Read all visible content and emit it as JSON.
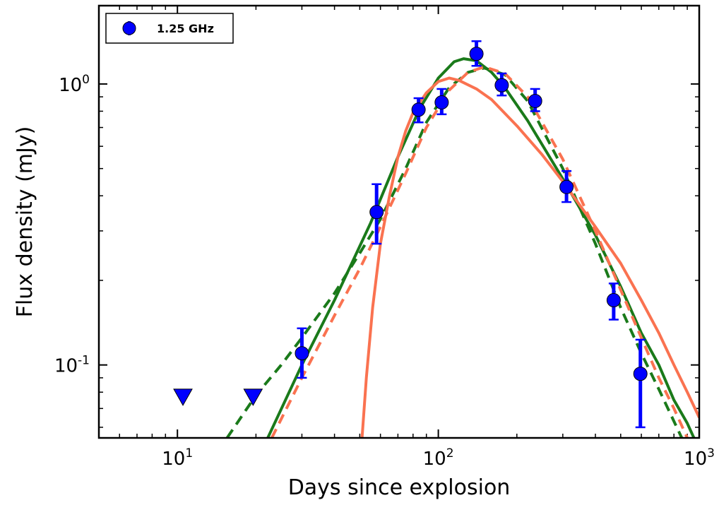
{
  "chart_data": {
    "type": "scatter",
    "title": "",
    "xlabel": "Days since explosion",
    "ylabel": "Flux density (mJy)",
    "xscale": "log",
    "yscale": "log",
    "xlim": [
      5,
      1000
    ],
    "ylim": [
      0.055,
      1.9
    ],
    "grid": false,
    "legend": {
      "placement": "top-left",
      "entries": [
        "1.25 GHz"
      ]
    },
    "x_tick_labels": [
      {
        "value": 10,
        "base": "10",
        "exp": "1"
      },
      {
        "value": 100,
        "base": "10",
        "exp": "2"
      },
      {
        "value": 1000,
        "base": "10",
        "exp": "3"
      }
    ],
    "y_tick_labels": [
      {
        "value": 0.1,
        "base": "10",
        "exp": "-1"
      },
      {
        "value": 1,
        "base": "10",
        "exp": "0"
      }
    ],
    "series": [
      {
        "name": "1.25 GHz",
        "kind": "errorbar",
        "color": "#0000ff",
        "points": [
          {
            "x": 30,
            "y": 0.11,
            "err_lo": 0.02,
            "err_hi": 0.025
          },
          {
            "x": 58,
            "y": 0.35,
            "err_lo": 0.08,
            "err_hi": 0.09
          },
          {
            "x": 84,
            "y": 0.81,
            "err_lo": 0.08,
            "err_hi": 0.08
          },
          {
            "x": 103,
            "y": 0.86,
            "err_lo": 0.08,
            "err_hi": 0.1
          },
          {
            "x": 140,
            "y": 1.28,
            "err_lo": 0.12,
            "err_hi": 0.14
          },
          {
            "x": 175,
            "y": 0.99,
            "err_lo": 0.08,
            "err_hi": 0.1
          },
          {
            "x": 235,
            "y": 0.87,
            "err_lo": 0.07,
            "err_hi": 0.09
          },
          {
            "x": 310,
            "y": 0.43,
            "err_lo": 0.05,
            "err_hi": 0.06
          },
          {
            "x": 470,
            "y": 0.17,
            "err_lo": 0.025,
            "err_hi": 0.025
          },
          {
            "x": 595,
            "y": 0.093,
            "err_lo": 0.033,
            "err_hi": 0.03
          }
        ]
      },
      {
        "kind": "upper_limit",
        "color": "#0000ff",
        "points": [
          {
            "x": 10.5,
            "y": 0.077
          },
          {
            "x": 19.5,
            "y": 0.077
          }
        ]
      },
      {
        "kind": "model",
        "style": "solid",
        "color": "#1a7a1a",
        "x": [
          22.2,
          30,
          40,
          55,
          70,
          85,
          100,
          115,
          125,
          140,
          160,
          180,
          220,
          300,
          400,
          500,
          600,
          700,
          800,
          900,
          1000
        ],
        "y": [
          0.055,
          0.1,
          0.17,
          0.32,
          0.55,
          0.82,
          1.05,
          1.2,
          1.23,
          1.21,
          1.1,
          0.97,
          0.74,
          0.46,
          0.29,
          0.19,
          0.13,
          0.1,
          0.075,
          0.062,
          0.05
        ]
      },
      {
        "kind": "model",
        "style": "dashed",
        "color": "#1a7a1a",
        "x": [
          15.5,
          20,
          25,
          30,
          40,
          50,
          60,
          75,
          90,
          110,
          130,
          150,
          180,
          220,
          300,
          400,
          500,
          600,
          700,
          800,
          900
        ],
        "y": [
          0.055,
          0.078,
          0.1,
          0.125,
          0.18,
          0.25,
          0.33,
          0.5,
          0.73,
          0.97,
          1.1,
          1.14,
          1.08,
          0.87,
          0.5,
          0.27,
          0.16,
          0.11,
          0.082,
          0.063,
          0.05
        ]
      },
      {
        "kind": "model",
        "style": "solid",
        "color": "#fa7250",
        "x": [
          51,
          53,
          56,
          60,
          65,
          70,
          75,
          80,
          90,
          100,
          110,
          120,
          140,
          160,
          200,
          250,
          300,
          400,
          500,
          600,
          700,
          800,
          900,
          1000
        ],
        "y": [
          0.055,
          0.09,
          0.16,
          0.27,
          0.4,
          0.55,
          0.68,
          0.79,
          0.93,
          1.02,
          1.05,
          1.03,
          0.96,
          0.88,
          0.71,
          0.56,
          0.45,
          0.31,
          0.23,
          0.17,
          0.13,
          0.1,
          0.08,
          0.065
        ]
      },
      {
        "kind": "model",
        "style": "dashed",
        "color": "#fa7250",
        "x": [
          23,
          30,
          40,
          50,
          60,
          75,
          90,
          110,
          130,
          150,
          180,
          220,
          300,
          400,
          500,
          600,
          700,
          800,
          900
        ],
        "y": [
          0.055,
          0.09,
          0.15,
          0.22,
          0.31,
          0.48,
          0.7,
          0.95,
          1.1,
          1.15,
          1.09,
          0.9,
          0.54,
          0.3,
          0.185,
          0.125,
          0.09,
          0.07,
          0.055
        ]
      }
    ]
  }
}
